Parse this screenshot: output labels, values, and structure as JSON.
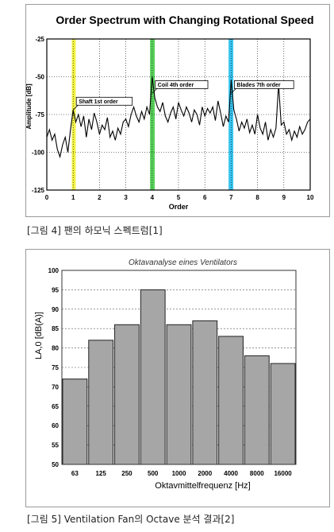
{
  "captions": {
    "fig4": "[그림 4] 팬의 하모닉 스펙트럼[1]",
    "fig5": "[그림 5] Ventilation Fan의 Octave 분석 결과[2]"
  },
  "chart_data": [
    {
      "type": "line",
      "title": "Order Spectrum with Changing Rotational Speed",
      "xlabel": "Order",
      "ylabel": "Amplitude [dB]",
      "xlim": [
        0,
        10
      ],
      "ylim": [
        -125,
        -25
      ],
      "xticks": [
        "0",
        "1",
        "2",
        "3",
        "4",
        "5",
        "6",
        "7",
        "8",
        "9",
        "10"
      ],
      "yticks": [
        "-25",
        "-50",
        "-75",
        "-100",
        "-125"
      ],
      "grid": true,
      "line_color": "#000000",
      "highlight_bands": [
        {
          "x": [
            0.95,
            1.1
          ],
          "color": "#f2f24a"
        },
        {
          "x": [
            3.92,
            4.1
          ],
          "color": "#58d05a"
        },
        {
          "x": [
            6.9,
            7.08
          ],
          "color": "#38c4ee"
        }
      ],
      "annotations": [
        {
          "text": "Shaft 1st order",
          "x": 1.0,
          "y": -72
        },
        {
          "text": "Coil 4th order",
          "x": 4.0,
          "y": -61
        },
        {
          "text": "Blades 7th order",
          "x": 7.0,
          "y": -61
        }
      ],
      "series": [
        {
          "x": [
            0,
            0.1,
            0.2,
            0.3,
            0.4,
            0.5,
            0.6,
            0.7,
            0.8,
            0.9,
            1.0,
            1.1,
            1.2,
            1.3,
            1.4,
            1.5,
            1.6,
            1.7,
            1.8,
            1.9,
            2.0,
            2.1,
            2.2,
            2.3,
            2.4,
            2.5,
            2.6,
            2.7,
            2.8,
            2.9,
            3.0,
            3.1,
            3.2,
            3.3,
            3.4,
            3.5,
            3.6,
            3.7,
            3.8,
            3.9,
            4.0,
            4.1,
            4.2,
            4.3,
            4.4,
            4.5,
            4.6,
            4.7,
            4.8,
            4.9,
            5.0,
            5.1,
            5.2,
            5.3,
            5.4,
            5.5,
            5.6,
            5.7,
            5.8,
            5.9,
            6.0,
            6.1,
            6.2,
            6.3,
            6.4,
            6.5,
            6.6,
            6.7,
            6.8,
            6.9,
            7.0,
            7.1,
            7.2,
            7.3,
            7.4,
            7.5,
            7.6,
            7.7,
            7.8,
            7.9,
            8.0,
            8.1,
            8.2,
            8.3,
            8.4,
            8.5,
            8.6,
            8.7,
            8.8,
            8.9,
            9.0,
            9.1,
            9.2,
            9.3,
            9.4,
            9.5,
            9.6,
            9.7,
            9.8,
            9.9,
            10.0
          ],
          "y": [
            -90,
            -85,
            -92,
            -88,
            -98,
            -103,
            -95,
            -90,
            -100,
            -85,
            -72,
            -80,
            -75,
            -83,
            -76,
            -90,
            -78,
            -85,
            -74,
            -80,
            -88,
            -82,
            -85,
            -77,
            -90,
            -86,
            -92,
            -84,
            -88,
            -80,
            -78,
            -83,
            -75,
            -70,
            -76,
            -80,
            -73,
            -78,
            -70,
            -75,
            -50,
            -64,
            -70,
            -73,
            -67,
            -76,
            -80,
            -74,
            -70,
            -78,
            -67,
            -72,
            -76,
            -70,
            -74,
            -80,
            -72,
            -75,
            -82,
            -70,
            -76,
            -71,
            -74,
            -70,
            -79,
            -66,
            -74,
            -83,
            -76,
            -80,
            -52,
            -72,
            -78,
            -86,
            -80,
            -84,
            -78,
            -87,
            -82,
            -88,
            -75,
            -84,
            -88,
            -80,
            -92,
            -85,
            -90,
            -84,
            -55,
            -82,
            -80,
            -88,
            -85,
            -92,
            -86,
            -90,
            -83,
            -88,
            -85,
            -80,
            -78
          ]
        }
      ]
    },
    {
      "type": "bar",
      "title": "Oktavanalyse eines Ventilators",
      "xlabel": "Oktavmittelfrequenz [Hz]",
      "ylabel": "LA,0 [dB(A)]",
      "ylim": [
        50,
        100
      ],
      "yticks": [
        "50",
        "55",
        "60",
        "65",
        "70",
        "75",
        "80",
        "85",
        "90",
        "95",
        "100"
      ],
      "grid": true,
      "bar_color": "#a6a6a6",
      "categories": [
        "63",
        "125",
        "250",
        "500",
        "1000",
        "2000",
        "4000",
        "8000",
        "16000"
      ],
      "values": [
        72,
        82,
        86,
        95,
        86,
        87,
        83,
        78,
        76
      ]
    }
  ]
}
